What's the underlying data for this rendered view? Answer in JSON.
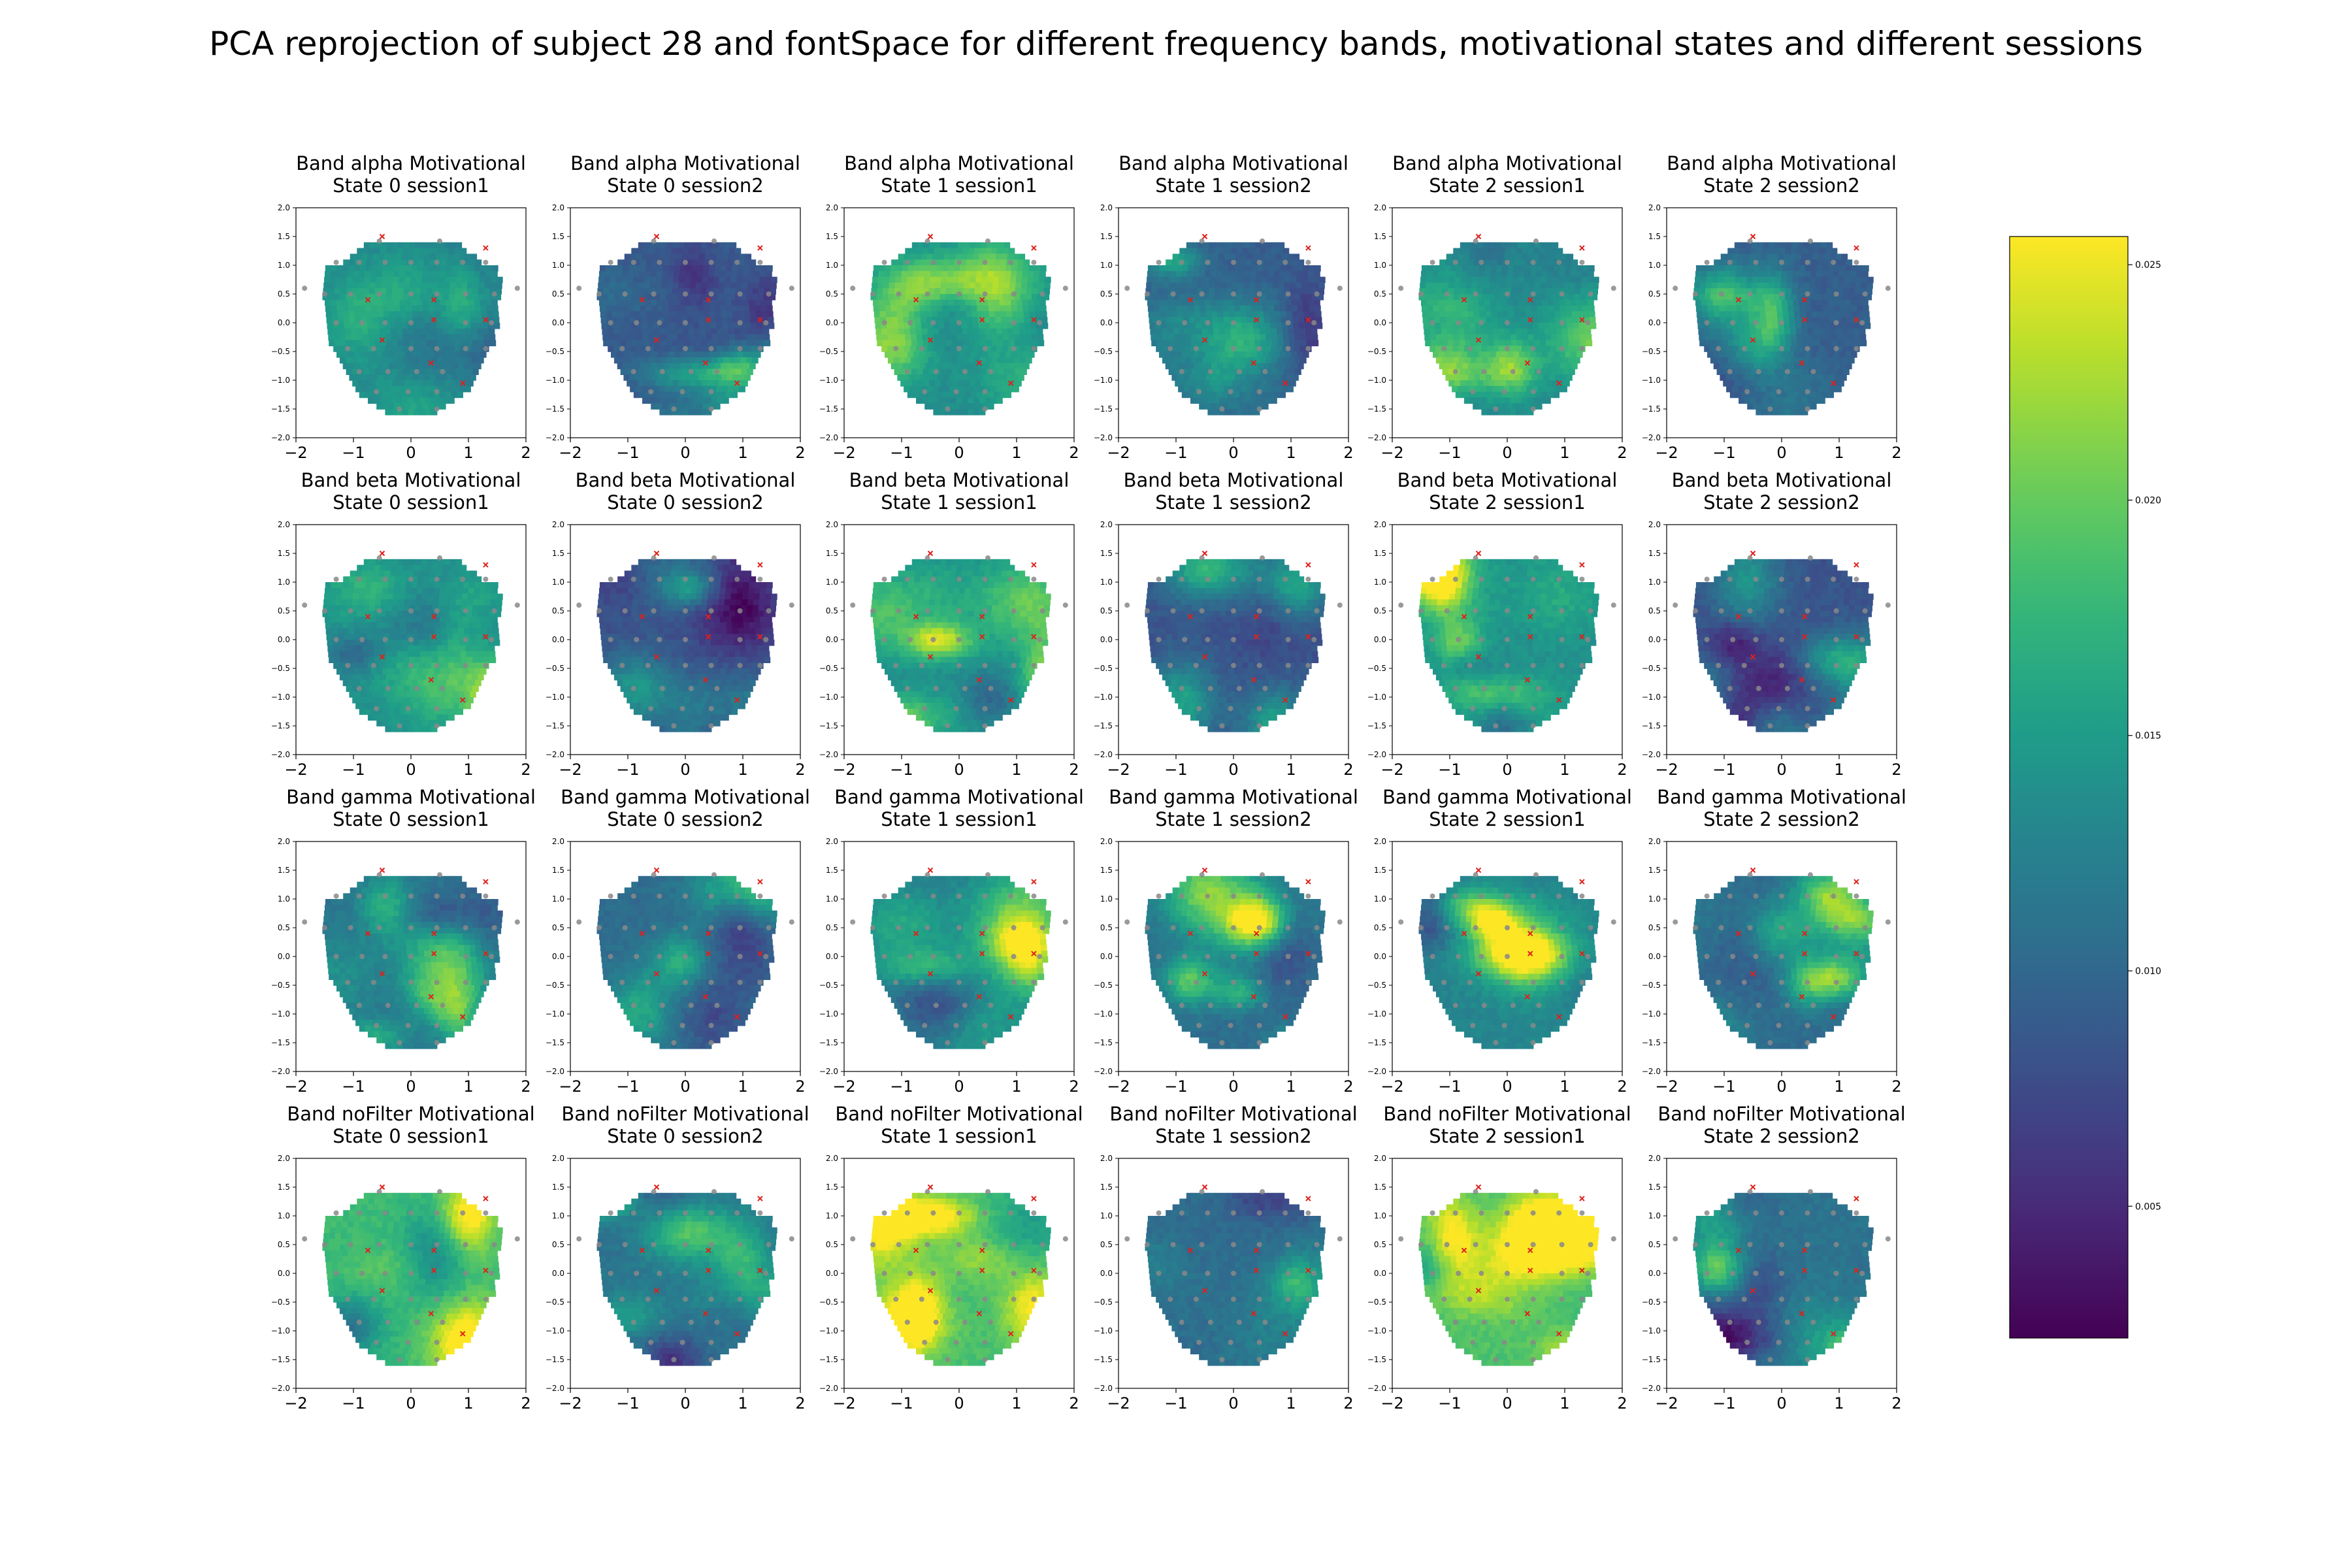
{
  "figure": {
    "title": "PCA reprojection of subject 28 and fontSpace for different frequency bands, motivational states and different sessions"
  },
  "chart_data": {
    "type": "heatmap",
    "colormap": "viridis",
    "bands": [
      "alpha",
      "beta",
      "gamma",
      "noFilter"
    ],
    "panels": [
      {
        "title_line1": "Band alpha Motivational",
        "title_line2": "State 0 session1",
        "band": "alpha",
        "level": 0.48
      },
      {
        "title_line1": "Band alpha Motivational",
        "title_line2": "State 0 session2",
        "band": "alpha",
        "level": 0.28
      },
      {
        "title_line1": "Band alpha Motivational",
        "title_line2": "State 1 session1",
        "band": "alpha",
        "level": 0.48
      },
      {
        "title_line1": "Band alpha Motivational",
        "title_line2": "State 1 session2",
        "band": "alpha",
        "level": 0.3
      },
      {
        "title_line1": "Band alpha Motivational",
        "title_line2": "State 2 session1",
        "band": "alpha",
        "level": 0.48
      },
      {
        "title_line1": "Band alpha Motivational",
        "title_line2": "State 2 session2",
        "band": "alpha",
        "level": 0.3
      },
      {
        "title_line1": "Band beta Motivational",
        "title_line2": "State 0 session1",
        "band": "beta",
        "level": 0.5
      },
      {
        "title_line1": "Band beta Motivational",
        "title_line2": "State 0 session2",
        "band": "beta",
        "level": 0.25
      },
      {
        "title_line1": "Band beta Motivational",
        "title_line2": "State 1 session1",
        "band": "beta",
        "level": 0.5
      },
      {
        "title_line1": "Band beta Motivational",
        "title_line2": "State 1 session2",
        "band": "beta",
        "level": 0.25
      },
      {
        "title_line1": "Band beta Motivational",
        "title_line2": "State 2 session1",
        "band": "beta",
        "level": 0.5
      },
      {
        "title_line1": "Band beta Motivational",
        "title_line2": "State 2 session2",
        "band": "beta",
        "level": 0.26
      },
      {
        "title_line1": "Band gamma Motivational",
        "title_line2": "State 0 session1",
        "band": "gamma",
        "level": 0.38
      },
      {
        "title_line1": "Band gamma Motivational",
        "title_line2": "State 0 session2",
        "band": "gamma",
        "level": 0.35
      },
      {
        "title_line1": "Band gamma Motivational",
        "title_line2": "State 1 session1",
        "band": "gamma",
        "level": 0.45
      },
      {
        "title_line1": "Band gamma Motivational",
        "title_line2": "State 1 session2",
        "band": "gamma",
        "level": 0.36
      },
      {
        "title_line1": "Band gamma Motivational",
        "title_line2": "State 2 session1",
        "band": "gamma",
        "level": 0.45
      },
      {
        "title_line1": "Band gamma Motivational",
        "title_line2": "State 2 session2",
        "band": "gamma",
        "level": 0.35
      },
      {
        "title_line1": "Band noFilter Motivational",
        "title_line2": "State 0 session1",
        "band": "noFilter",
        "level": 0.68
      },
      {
        "title_line1": "Band noFilter Motivational",
        "title_line2": "State 0 session2",
        "band": "noFilter",
        "level": 0.38
      },
      {
        "title_line1": "Band noFilter Motivational",
        "title_line2": "State 1 session1",
        "band": "noFilter",
        "level": 0.7
      },
      {
        "title_line1": "Band noFilter Motivational",
        "title_line2": "State 1 session2",
        "band": "noFilter",
        "level": 0.35
      },
      {
        "title_line1": "Band noFilter Motivational",
        "title_line2": "State 2 session1",
        "band": "noFilter",
        "level": 0.7
      },
      {
        "title_line1": "Band noFilter Motivational",
        "title_line2": "State 2 session2",
        "band": "noFilter",
        "level": 0.38
      }
    ],
    "xlim": [
      -2,
      2
    ],
    "ylim": [
      -2,
      2
    ],
    "x_ticks": [
      "−2",
      "−1",
      "0",
      "1",
      "2"
    ],
    "y_ticks": [
      "2.0",
      "1.5",
      "1.0",
      "0.5",
      "0.0",
      "−0.5",
      "−1.0",
      "−1.5",
      "−2.0"
    ],
    "colorbar": {
      "range": [
        0.0022,
        0.0256
      ],
      "ticks": [
        {
          "value": 0.005,
          "label": "0.005"
        },
        {
          "value": 0.01,
          "label": "0.010"
        },
        {
          "value": 0.015,
          "label": "0.015"
        },
        {
          "value": 0.02,
          "label": "0.020"
        },
        {
          "value": 0.025,
          "label": "0.025"
        }
      ]
    },
    "sensors": {
      "grey": [
        [
          -1.85,
          0.6
        ],
        [
          1.85,
          0.6
        ],
        [
          -0.55,
          1.42
        ],
        [
          0.5,
          1.42
        ],
        [
          -1.3,
          1.05
        ],
        [
          -0.9,
          1.05
        ],
        [
          -0.45,
          1.05
        ],
        [
          0.0,
          1.05
        ],
        [
          0.45,
          1.05
        ],
        [
          0.9,
          1.05
        ],
        [
          1.3,
          1.05
        ],
        [
          -1.5,
          0.5
        ],
        [
          -1.05,
          0.5
        ],
        [
          -0.55,
          0.5
        ],
        [
          0.0,
          0.5
        ],
        [
          0.45,
          0.5
        ],
        [
          0.95,
          0.5
        ],
        [
          1.45,
          0.5
        ],
        [
          -1.3,
          0.0
        ],
        [
          -0.85,
          0.0
        ],
        [
          -0.45,
          0.0
        ],
        [
          0.0,
          0.0
        ],
        [
          0.95,
          0.0
        ],
        [
          1.4,
          0.0
        ],
        [
          -1.1,
          -0.45
        ],
        [
          -0.65,
          -0.45
        ],
        [
          0.0,
          -0.45
        ],
        [
          0.45,
          -0.45
        ],
        [
          0.95,
          -0.45
        ],
        [
          1.3,
          -0.45
        ],
        [
          -0.9,
          -0.85
        ],
        [
          -0.4,
          -0.85
        ],
        [
          0.1,
          -0.85
        ],
        [
          0.55,
          -0.85
        ],
        [
          -0.6,
          -1.2
        ],
        [
          -0.05,
          -1.2
        ],
        [
          0.45,
          -1.2
        ],
        [
          -0.2,
          -1.5
        ],
        [
          0.45,
          -1.5
        ]
      ],
      "red": [
        [
          -0.5,
          1.5
        ],
        [
          1.3,
          1.3
        ],
        [
          -0.75,
          0.4
        ],
        [
          0.4,
          0.4
        ],
        [
          0.4,
          0.05
        ],
        [
          1.3,
          0.05
        ],
        [
          -0.5,
          -0.3
        ],
        [
          0.35,
          -0.7
        ],
        [
          0.9,
          -1.05
        ]
      ]
    }
  }
}
